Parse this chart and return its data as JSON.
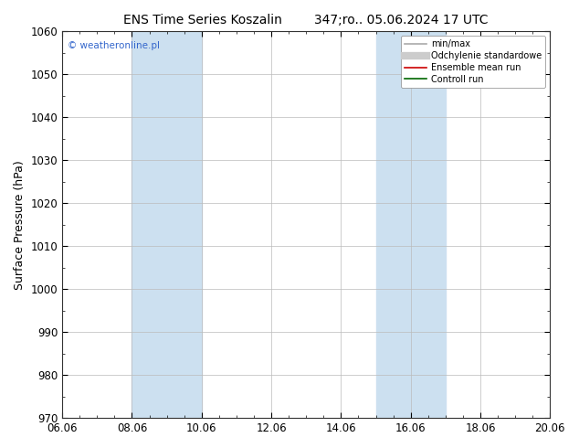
{
  "title_left": "ENS Time Series Koszalin",
  "title_right": "347;ro.. 05.06.2024 17 UTC",
  "ylabel": "Surface Pressure (hPa)",
  "ylim": [
    970,
    1060
  ],
  "yticks": [
    970,
    980,
    990,
    1000,
    1010,
    1020,
    1030,
    1040,
    1050,
    1060
  ],
  "xlim_start": 0,
  "xlim_end": 14,
  "xtick_labels": [
    "06.06",
    "08.06",
    "10.06",
    "12.06",
    "14.06",
    "16.06",
    "18.06",
    "20.06"
  ],
  "xtick_positions": [
    0,
    2,
    4,
    6,
    8,
    10,
    12,
    14
  ],
  "shaded_bands": [
    {
      "x_start": 2.0,
      "x_end": 4.0
    },
    {
      "x_start": 9.0,
      "x_end": 11.0
    }
  ],
  "shade_color": "#cce0f0",
  "watermark": "© weatheronline.pl",
  "legend_items": [
    {
      "label": "min/max",
      "color": "#aaaaaa",
      "lw": 1.2
    },
    {
      "label": "Odchylenie standardowe",
      "color": "#cccccc",
      "lw": 6
    },
    {
      "label": "Ensemble mean run",
      "color": "#cc0000",
      "lw": 1.2
    },
    {
      "label": "Controll run",
      "color": "#006600",
      "lw": 1.2
    }
  ],
  "bg_color": "#ffffff",
  "grid_color": "#bbbbbb",
  "title_fontsize": 10,
  "axis_label_fontsize": 9,
  "tick_fontsize": 8.5,
  "watermark_color": "#3366cc"
}
